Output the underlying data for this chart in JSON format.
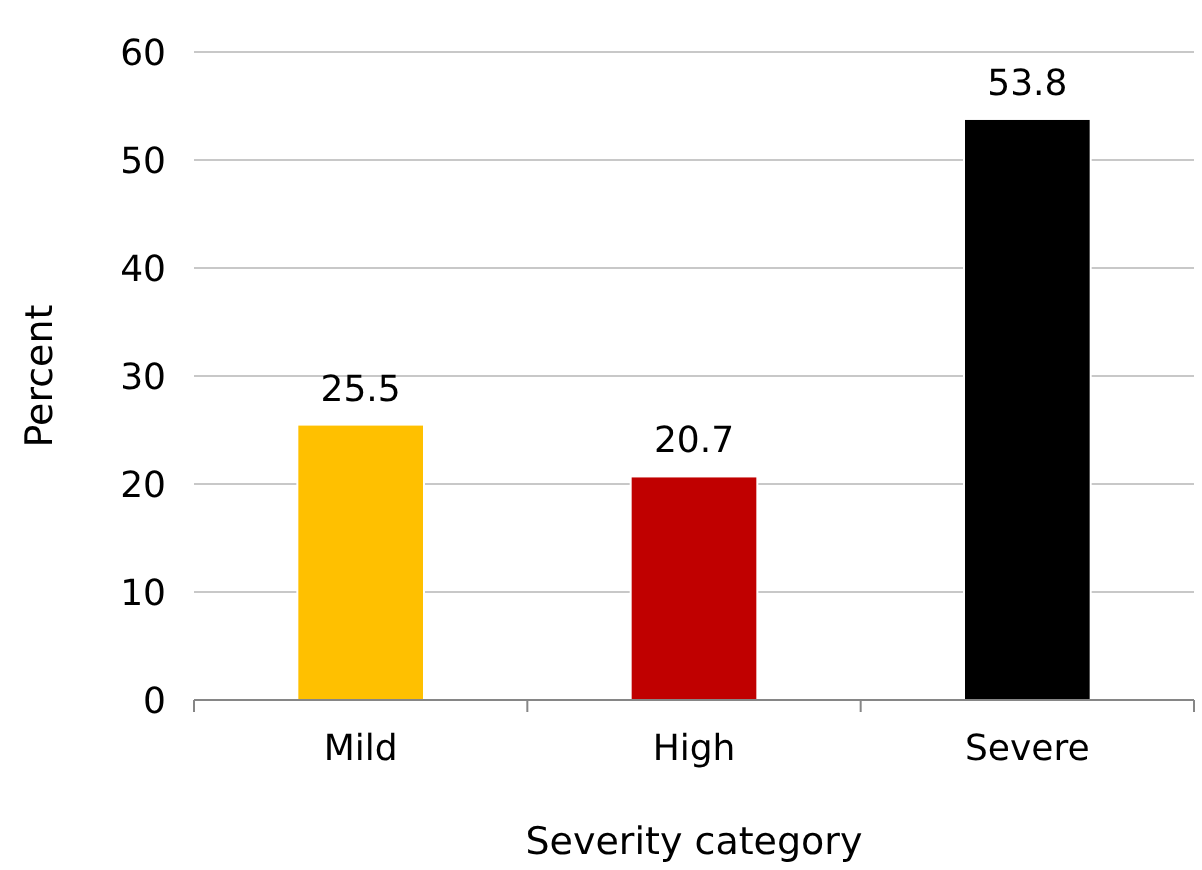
{
  "chart_data": {
    "type": "bar",
    "xlabel": "Severity category",
    "ylabel": "Percent",
    "categories": [
      "Mild",
      "High",
      "Severe"
    ],
    "values": [
      25.5,
      20.7,
      53.8
    ],
    "colors": [
      "#ffc000",
      "#c00000",
      "#000000"
    ],
    "ylim": [
      0,
      60
    ],
    "yticks": [
      0,
      10,
      20,
      30,
      40,
      50,
      60
    ],
    "grid": "y",
    "data_labels": true
  }
}
